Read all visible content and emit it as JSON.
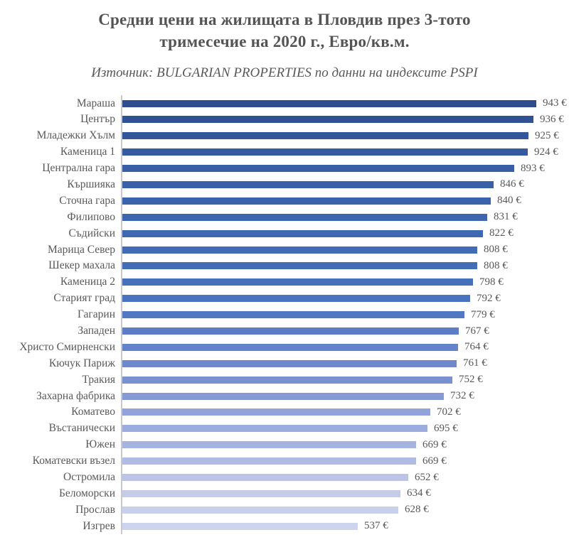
{
  "header": {
    "title_line1": "Средни цени на жилищата в Пловдив през 3-тото",
    "title_line2": "тримесечие на 2020 г., Евро/кв.м.",
    "subtitle": "Източник: BULGARIAN PROPERTIES по данни на индексите PSPI"
  },
  "chart_data": {
    "type": "bar",
    "orientation": "horizontal",
    "title": "Средни цени на жилищата в Пловдив през 3-тото тримесечие на 2020 г., Евро/кв.м.",
    "subtitle": "Източник: BULGARIAN PROPERTIES по данни на индексите PSPI",
    "unit": "€",
    "value_label_format": "{value} €",
    "xlim": [
      0,
      1000
    ],
    "grid": false,
    "legend": false,
    "sort": "descending",
    "categories": [
      "Мараша",
      "Център",
      "Младежки Хълм",
      "Каменица 1",
      "Централна гара",
      "Кършияка",
      "Сточна гара",
      "Филипово",
      "Съдийски",
      "Марица Север",
      "Шекер махала",
      "Каменица 2",
      "Старият град",
      "Гагарин",
      "Западен",
      "Христо Смирненски",
      "Кючук Париж",
      "Тракия",
      "Захарна фабрика",
      "Коматево",
      "Въстанически",
      "Южен",
      "Коматевски възел",
      "Остромила",
      "Беломорски",
      "Прослав",
      "Изгрев"
    ],
    "values": [
      943,
      936,
      925,
      924,
      893,
      846,
      840,
      831,
      822,
      808,
      808,
      798,
      792,
      779,
      767,
      764,
      761,
      752,
      732,
      702,
      695,
      669,
      669,
      652,
      634,
      628,
      537
    ],
    "bar_colors": [
      "#2E4D8F",
      "#305194",
      "#33569A",
      "#365A9F",
      "#385EA5",
      "#3A61A8",
      "#3B63AC",
      "#3D66AF",
      "#3E68B2",
      "#416BB5",
      "#446DB8",
      "#4770BB",
      "#4A72BE",
      "#5378C2",
      "#5C7DC5",
      "#6583C9",
      "#6E88CC",
      "#7A91D1",
      "#869AD5",
      "#91A3DA",
      "#9DACDE",
      "#A7B4E1",
      "#B1BCE4",
      "#BBC4E7",
      "#C4CCEA",
      "#C8D0EC",
      "#CDD4EE"
    ],
    "color_scale": {
      "high_color": "#2E4D8F",
      "low_color": "#CDD4EE",
      "meaning": "darker = higher price"
    },
    "axis_line_color": "#C9C9C9"
  }
}
